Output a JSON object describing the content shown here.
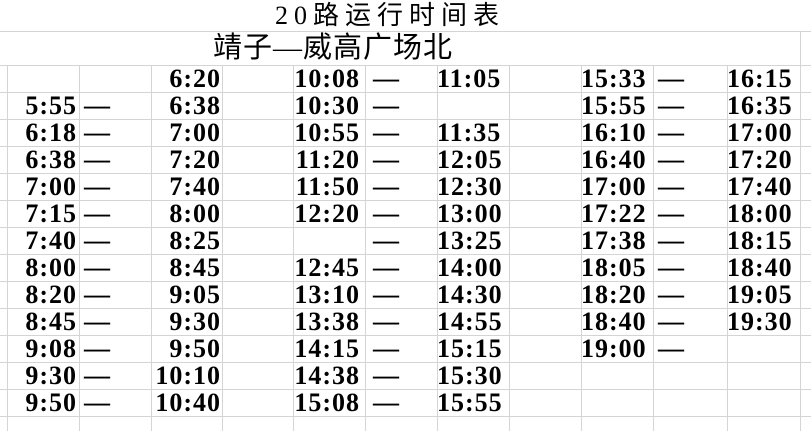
{
  "title": "20路运行时间表",
  "subtitle": "靖子—威高广场北",
  "colors": {
    "text": "#000000",
    "gridline": "#d4d4d4",
    "background": "#ffffff"
  },
  "timetable": {
    "rows": [
      [
        "",
        "",
        "6:20",
        "10:08",
        "—",
        "11:05",
        "15:33",
        "—",
        "16:15"
      ],
      [
        "5:55",
        "—",
        "6:38",
        "10:30",
        "—",
        "",
        "15:55",
        "—",
        "16:35"
      ],
      [
        "6:18",
        "—",
        "7:00",
        "10:55",
        "—",
        "11:35",
        "16:10",
        "—",
        "17:00"
      ],
      [
        "6:38",
        "—",
        "7:20",
        "11:20",
        "—",
        "12:05",
        "16:40",
        "—",
        "17:20"
      ],
      [
        "7:00",
        "—",
        "7:40",
        "11:50",
        "—",
        "12:30",
        "17:00",
        "—",
        "17:40"
      ],
      [
        "7:15",
        "—",
        "8:00",
        "12:20",
        "—",
        "13:00",
        "17:22",
        "—",
        "18:00"
      ],
      [
        "7:40",
        "—",
        "8:25",
        "",
        "—",
        "13:25",
        "17:38",
        "—",
        "18:15"
      ],
      [
        "8:00",
        "—",
        "8:45",
        "12:45",
        "—",
        "14:00",
        "18:05",
        "—",
        "18:40"
      ],
      [
        "8:20",
        "—",
        "9:05",
        "13:10",
        "—",
        "14:30",
        "18:20",
        "—",
        "19:05"
      ],
      [
        "8:45",
        "—",
        "9:30",
        "13:38",
        "—",
        "14:55",
        "18:40",
        "—",
        "19:30"
      ],
      [
        "9:08",
        "—",
        "9:50",
        "14:15",
        "—",
        "15:15",
        "19:00",
        "—",
        ""
      ],
      [
        "9:30",
        "—",
        "10:10",
        "14:38",
        "—",
        "15:30",
        "",
        "",
        ""
      ],
      [
        "9:50",
        "—",
        "10:40",
        "15:08",
        "—",
        "15:55",
        "",
        "",
        ""
      ]
    ]
  }
}
